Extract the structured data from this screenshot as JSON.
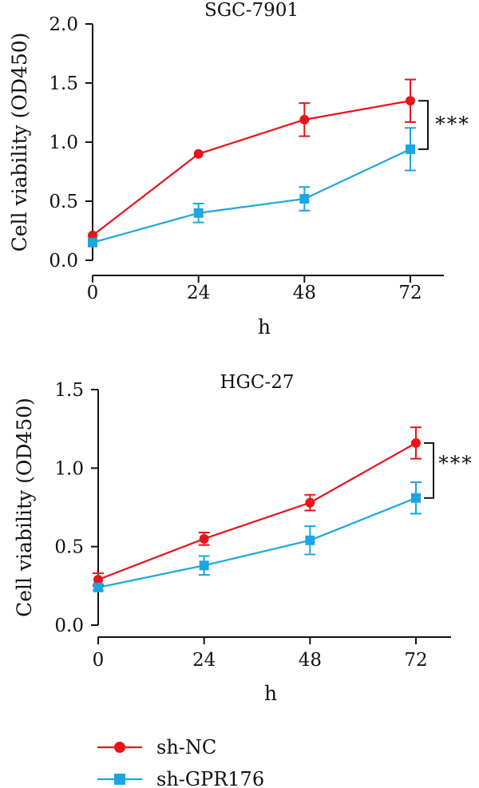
{
  "colors": {
    "sh_nc": "#e8141a",
    "sh_gpr176": "#1ba6e1",
    "axis": "#111111"
  },
  "legend": [
    {
      "name": "sh-NC",
      "marker": "circle",
      "color": "#e8141a"
    },
    {
      "name": "sh-GPR176",
      "marker": "square",
      "color": "#1ba6e1"
    }
  ],
  "chart_data": [
    {
      "type": "line",
      "title": "SGC-7901",
      "xlabel": "h",
      "ylabel": "Cell viability (OD450)",
      "x": [
        0,
        24,
        48,
        72
      ],
      "xticks": [
        "0",
        "24",
        "48",
        "72"
      ],
      "yticks": [
        "0.0",
        "0.5",
        "1.0",
        "1.5",
        "2.0"
      ],
      "ylim": [
        0,
        2.0
      ],
      "significance": "***",
      "series": [
        {
          "name": "sh-NC",
          "color": "#e8141a",
          "marker": "circle",
          "values": [
            0.21,
            0.9,
            1.19,
            1.35
          ],
          "errors": [
            0.0,
            0.0,
            0.14,
            0.18
          ]
        },
        {
          "name": "sh-GPR176",
          "color": "#1ba6e1",
          "marker": "square",
          "values": [
            0.15,
            0.4,
            0.52,
            0.94
          ],
          "errors": [
            0.0,
            0.08,
            0.1,
            0.18
          ]
        }
      ]
    },
    {
      "type": "line",
      "title": "HGC-27",
      "xlabel": "h",
      "ylabel": "Cell viability (OD450)",
      "x": [
        0,
        24,
        48,
        72
      ],
      "xticks": [
        "0",
        "24",
        "48",
        "72"
      ],
      "yticks": [
        "0.0",
        "0.5",
        "1.0",
        "1.5"
      ],
      "ylim": [
        0,
        1.5
      ],
      "significance": "***",
      "series": [
        {
          "name": "sh-NC",
          "color": "#e8141a",
          "marker": "circle",
          "values": [
            0.29,
            0.55,
            0.78,
            1.16
          ],
          "errors": [
            0.04,
            0.04,
            0.05,
            0.1
          ]
        },
        {
          "name": "sh-GPR176",
          "color": "#1ba6e1",
          "marker": "square",
          "values": [
            0.24,
            0.38,
            0.54,
            0.81
          ],
          "errors": [
            0.02,
            0.06,
            0.09,
            0.1
          ]
        }
      ]
    }
  ]
}
